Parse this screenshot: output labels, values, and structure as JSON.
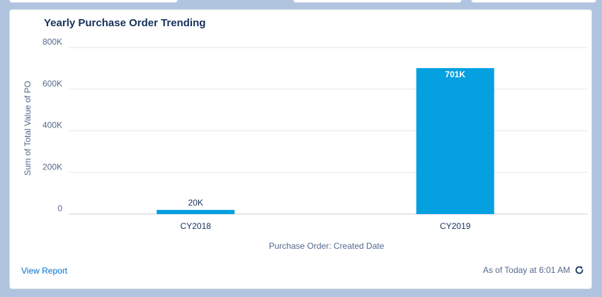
{
  "card": {
    "title": "Yearly Purchase Order Trending",
    "view_report_label": "View Report",
    "status_text": "As of Today at 6:01 AM",
    "refresh_icon": "refresh-icon"
  },
  "colors": {
    "bar": "#04a0e0",
    "grid": "#e2e6ec"
  },
  "chart_data": {
    "type": "bar",
    "categories": [
      "CY2018",
      "CY2019"
    ],
    "values": [
      20000,
      701000
    ],
    "data_labels": [
      "20K",
      "701K"
    ],
    "xlabel": "Purchase Order: Created Date",
    "ylabel": "Sum of Total Value of PO",
    "ylim": [
      0,
      800000
    ],
    "yticks": [
      0,
      200000,
      400000,
      600000,
      800000
    ],
    "ytick_labels": [
      "0",
      "200K",
      "400K",
      "600K",
      "800K"
    ],
    "grid": true,
    "legend": "none"
  }
}
